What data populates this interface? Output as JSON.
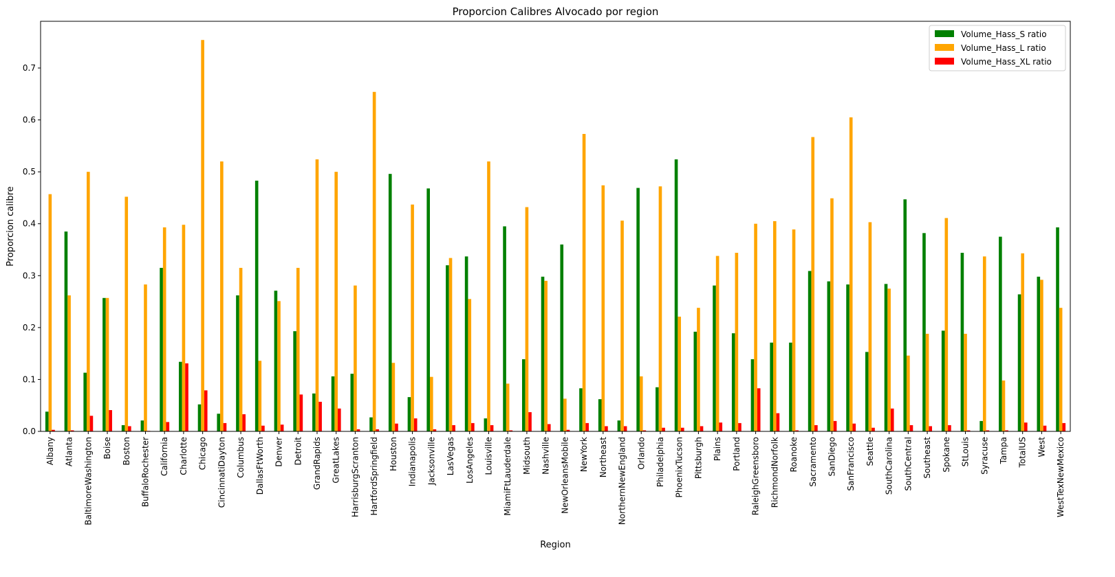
{
  "chart_data": {
    "type": "bar",
    "title": "Proporcion Calibres Alvocado por region",
    "xlabel": "Region",
    "ylabel": "Proporcion calibre",
    "ylim": [
      0,
      0.79
    ],
    "yticks": [
      0.0,
      0.1,
      0.2,
      0.3,
      0.4,
      0.5,
      0.6,
      0.7
    ],
    "ytick_labels": [
      "0.0",
      "0.1",
      "0.2",
      "0.3",
      "0.4",
      "0.5",
      "0.6",
      "0.7"
    ],
    "grid": false,
    "legend_position": "top-right",
    "categories": [
      "Albany",
      "Atlanta",
      "BaltimoreWashington",
      "Boise",
      "Boston",
      "BuffaloRochester",
      "California",
      "Charlotte",
      "Chicago",
      "CincinnatiDayton",
      "Columbus",
      "DallasFtWorth",
      "Denver",
      "Detroit",
      "GrandRapids",
      "GreatLakes",
      "HarrisburgScranton",
      "HartfordSpringfield",
      "Houston",
      "Indianapolis",
      "Jacksonville",
      "LasVegas",
      "LosAngeles",
      "Louisville",
      "MiamiFtLauderdale",
      "Midsouth",
      "Nashville",
      "NewOrleansMobile",
      "NewYork",
      "Northeast",
      "NorthernNewEngland",
      "Orlando",
      "Philadelphia",
      "PhoenixTucson",
      "Pittsburgh",
      "Plains",
      "Portland",
      "RaleighGreensboro",
      "RichmondNorfolk",
      "Roanoke",
      "Sacramento",
      "SanDiego",
      "SanFrancisco",
      "Seattle",
      "SouthCarolina",
      "SouthCentral",
      "Southeast",
      "Spokane",
      "StLouis",
      "Syracuse",
      "Tampa",
      "TotalUS",
      "West",
      "WestTexNewMexico"
    ],
    "series": [
      {
        "name": "Volume_Hass_S ratio",
        "color": "#008000",
        "values": [
          0.038,
          0.385,
          0.113,
          0.257,
          0.012,
          0.021,
          0.315,
          0.134,
          0.052,
          0.034,
          0.262,
          0.483,
          0.271,
          0.193,
          0.073,
          0.106,
          0.111,
          0.027,
          0.496,
          0.066,
          0.468,
          0.32,
          0.337,
          0.025,
          0.395,
          0.139,
          0.298,
          0.36,
          0.083,
          0.062,
          0.021,
          0.469,
          0.085,
          0.524,
          0.192,
          0.281,
          0.189,
          0.139,
          0.171,
          0.171,
          0.309,
          0.289,
          0.283,
          0.153,
          0.284,
          0.447,
          0.382,
          0.194,
          0.344,
          0.02,
          0.375,
          0.264,
          0.298,
          0.393
        ]
      },
      {
        "name": "Volume_Hass_L ratio",
        "color": "#ffa500",
        "values": [
          0.457,
          0.262,
          0.5,
          0.257,
          0.452,
          0.283,
          0.393,
          0.398,
          0.754,
          0.52,
          0.315,
          0.136,
          0.251,
          0.315,
          0.524,
          0.5,
          0.281,
          0.654,
          0.132,
          0.437,
          0.105,
          0.334,
          0.255,
          0.52,
          0.092,
          0.432,
          0.29,
          0.063,
          0.573,
          0.474,
          0.406,
          0.106,
          0.472,
          0.221,
          0.238,
          0.338,
          0.344,
          0.4,
          0.405,
          0.389,
          0.567,
          0.449,
          0.605,
          0.403,
          0.275,
          0.146,
          0.188,
          0.411,
          0.188,
          0.337,
          0.098,
          0.343,
          0.292,
          0.238
        ]
      },
      {
        "name": "Volume_Hass_XL ratio",
        "color": "#ff0000",
        "values": [
          0.003,
          0.002,
          0.03,
          0.041,
          0.01,
          0.001,
          0.018,
          0.131,
          0.079,
          0.016,
          0.033,
          0.011,
          0.013,
          0.071,
          0.057,
          0.044,
          0.004,
          0.004,
          0.015,
          0.025,
          0.004,
          0.012,
          0.016,
          0.012,
          0.002,
          0.037,
          0.014,
          0.003,
          0.016,
          0.01,
          0.01,
          0.002,
          0.007,
          0.007,
          0.01,
          0.017,
          0.016,
          0.083,
          0.035,
          0.002,
          0.012,
          0.02,
          0.015,
          0.007,
          0.044,
          0.012,
          0.01,
          0.012,
          0.002,
          0.002,
          0.002,
          0.017,
          0.011,
          0.016
        ]
      }
    ]
  }
}
